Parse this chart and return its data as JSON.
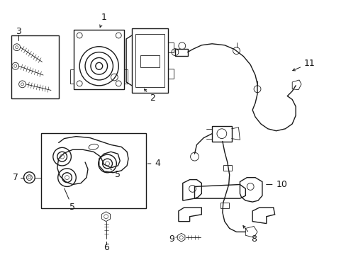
{
  "bg_color": "#ffffff",
  "line_color": "#1a1a1a",
  "lw": 1.0,
  "tlw": 0.6,
  "fig_width": 4.89,
  "fig_height": 3.6,
  "dpi": 100
}
